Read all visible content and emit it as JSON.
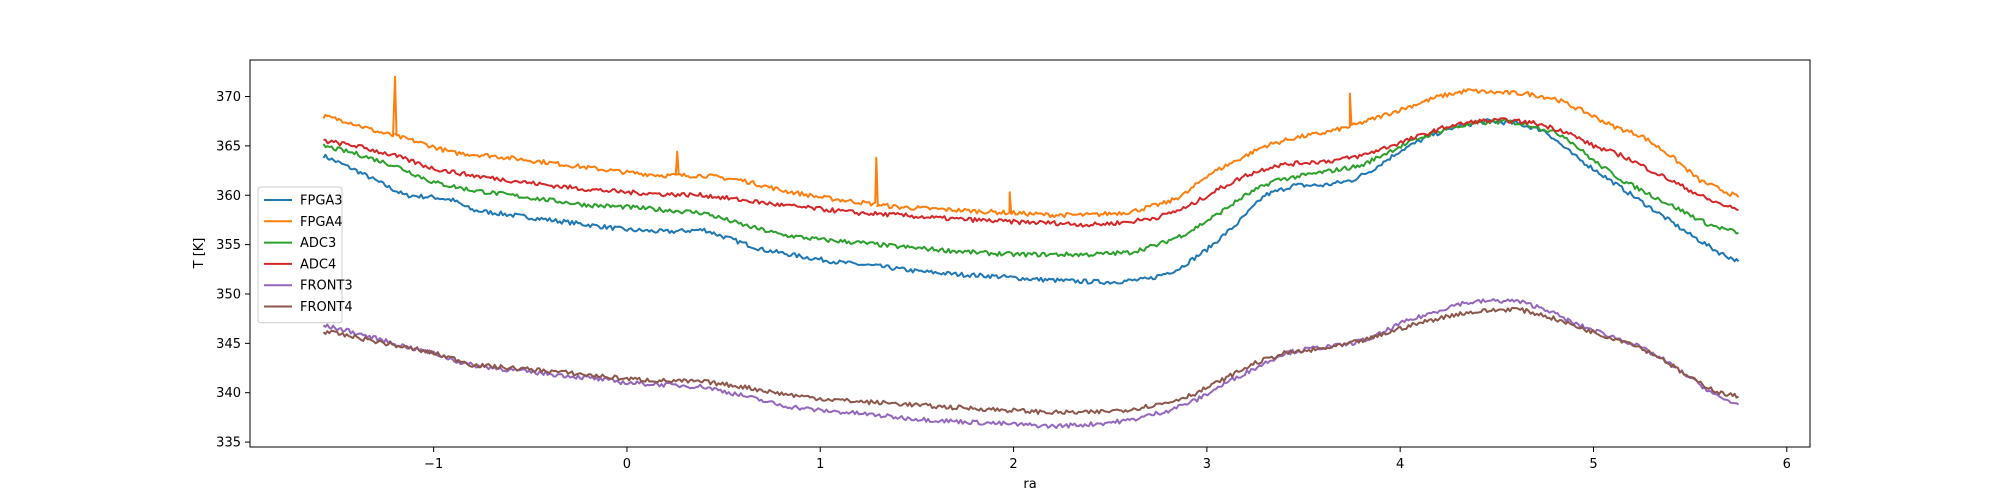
{
  "chart_data": {
    "type": "line",
    "title": "",
    "xlabel": "ra",
    "ylabel": "T [K]",
    "xlim": [
      -1.95,
      6.12
    ],
    "ylim": [
      334.5,
      373.7
    ],
    "xticks": [
      -1,
      0,
      1,
      2,
      3,
      4,
      5,
      6
    ],
    "yticks": [
      335,
      340,
      345,
      350,
      355,
      360,
      365,
      370
    ],
    "grid": false,
    "legend_position": "center-left",
    "series": [
      {
        "name": "FPGA3",
        "color": "#1f77b4",
        "x": [
          -1.57,
          -1.4,
          -1.25,
          -1.15,
          -1.0,
          -0.9,
          -0.8,
          -0.6,
          -0.4,
          -0.2,
          0.0,
          0.2,
          0.4,
          0.5,
          0.7,
          0.9,
          1.1,
          1.3,
          1.5,
          1.7,
          1.9,
          2.1,
          2.3,
          2.5,
          2.7,
          2.85,
          3.0,
          3.15,
          3.3,
          3.45,
          3.6,
          3.75,
          3.85,
          4.0,
          4.15,
          4.3,
          4.45,
          4.6,
          4.75,
          4.9,
          5.05,
          5.2,
          5.35,
          5.5,
          5.65,
          5.75
        ],
        "y": [
          364.0,
          362.5,
          361.0,
          360.0,
          359.8,
          359.5,
          358.5,
          358.0,
          357.5,
          357.0,
          356.5,
          356.3,
          356.5,
          355.8,
          354.5,
          353.8,
          353.2,
          352.8,
          352.3,
          352.0,
          351.8,
          351.5,
          351.3,
          351.2,
          351.5,
          352.5,
          354.5,
          357.0,
          360.0,
          361.0,
          361.0,
          361.5,
          362.5,
          364.5,
          366.0,
          367.0,
          367.5,
          367.3,
          366.5,
          364.0,
          362.0,
          360.0,
          358.0,
          356.0,
          354.2,
          353.3
        ]
      },
      {
        "name": "FPGA4",
        "color": "#ff7f0e",
        "x": [
          -1.57,
          -1.45,
          -1.3,
          -1.2,
          -1.1,
          -0.9,
          -0.7,
          -0.4,
          -0.2,
          0.0,
          0.2,
          0.4,
          0.6,
          0.8,
          1.0,
          1.2,
          1.4,
          1.6,
          1.8,
          2.0,
          2.2,
          2.4,
          2.6,
          2.8,
          2.9,
          3.0,
          3.15,
          3.3,
          3.45,
          3.6,
          3.75,
          3.9,
          4.05,
          4.2,
          4.35,
          4.5,
          4.65,
          4.8,
          4.95,
          5.1,
          5.25,
          5.4,
          5.55,
          5.75
        ],
        "y": [
          368.0,
          367.5,
          366.5,
          366.0,
          365.5,
          364.3,
          364.0,
          363.3,
          362.8,
          362.3,
          362.0,
          362.0,
          361.5,
          360.5,
          359.8,
          359.3,
          358.8,
          358.6,
          358.4,
          358.2,
          358.0,
          358.0,
          358.3,
          359.3,
          360.3,
          362.0,
          363.5,
          365.0,
          365.8,
          366.3,
          367.0,
          368.0,
          369.0,
          370.0,
          370.6,
          370.4,
          370.3,
          369.8,
          368.5,
          367.0,
          366.0,
          364.0,
          361.5,
          359.8
        ]
      },
      {
        "name": "ADC3",
        "color": "#2ca02c",
        "x": [
          -1.57,
          -1.4,
          -1.2,
          -1.0,
          -0.8,
          -0.6,
          -0.4,
          -0.2,
          0.0,
          0.2,
          0.4,
          0.6,
          0.8,
          1.0,
          1.2,
          1.4,
          1.6,
          1.8,
          2.0,
          2.2,
          2.4,
          2.6,
          2.75,
          2.9,
          3.05,
          3.2,
          3.35,
          3.5,
          3.65,
          3.8,
          3.95,
          4.1,
          4.25,
          4.4,
          4.55,
          4.7,
          4.85,
          5.0,
          5.15,
          5.3,
          5.45,
          5.6,
          5.75
        ],
        "y": [
          365.0,
          364.2,
          363.0,
          361.3,
          360.5,
          360.0,
          359.5,
          359.0,
          358.8,
          358.5,
          358.2,
          357.0,
          356.0,
          355.5,
          355.2,
          354.8,
          354.5,
          354.2,
          354.0,
          354.0,
          354.0,
          354.2,
          355.0,
          356.2,
          358.0,
          360.0,
          361.5,
          362.0,
          362.5,
          363.0,
          364.5,
          365.8,
          366.8,
          367.3,
          367.5,
          367.0,
          366.0,
          363.5,
          361.5,
          360.0,
          358.5,
          357.0,
          356.2
        ]
      },
      {
        "name": "ADC4",
        "color": "#d62728",
        "x": [
          -1.57,
          -1.4,
          -1.2,
          -1.0,
          -0.8,
          -0.6,
          -0.4,
          -0.2,
          0.0,
          0.2,
          0.4,
          0.6,
          0.8,
          1.0,
          1.2,
          1.4,
          1.6,
          1.8,
          2.0,
          2.2,
          2.4,
          2.6,
          2.75,
          2.9,
          3.05,
          3.2,
          3.35,
          3.5,
          3.65,
          3.8,
          3.95,
          4.1,
          4.25,
          4.4,
          4.55,
          4.7,
          4.85,
          5.0,
          5.15,
          5.3,
          5.45,
          5.6,
          5.75
        ],
        "y": [
          365.5,
          365.0,
          364.0,
          362.7,
          362.0,
          361.5,
          361.0,
          360.6,
          360.3,
          360.1,
          360.0,
          359.5,
          359.0,
          358.6,
          358.2,
          358.0,
          357.7,
          357.5,
          357.3,
          357.2,
          357.0,
          357.3,
          357.8,
          358.8,
          360.5,
          362.0,
          363.0,
          363.3,
          363.5,
          364.0,
          365.0,
          366.0,
          367.0,
          367.5,
          367.6,
          367.3,
          366.5,
          365.0,
          364.0,
          362.5,
          361.0,
          359.5,
          358.5
        ]
      },
      {
        "name": "FRONT3",
        "color": "#9467bd",
        "x": [
          -1.57,
          -1.45,
          -1.3,
          -1.15,
          -1.0,
          -0.85,
          -0.8,
          -0.6,
          -0.4,
          -0.2,
          0.0,
          0.2,
          0.4,
          0.6,
          0.8,
          1.0,
          1.2,
          1.4,
          1.6,
          1.8,
          2.0,
          2.2,
          2.4,
          2.6,
          2.8,
          2.95,
          3.1,
          3.25,
          3.4,
          3.55,
          3.7,
          3.85,
          4.0,
          4.15,
          4.3,
          4.45,
          4.6,
          4.75,
          4.9,
          5.05,
          5.2,
          5.35,
          5.5,
          5.65,
          5.75
        ],
        "y": [
          346.8,
          346.3,
          345.5,
          344.7,
          344.0,
          343.0,
          342.8,
          342.3,
          341.9,
          341.5,
          341.0,
          340.8,
          340.6,
          339.7,
          338.7,
          338.2,
          337.9,
          337.5,
          337.2,
          337.0,
          336.8,
          336.6,
          336.8,
          337.2,
          338.2,
          339.3,
          341.0,
          342.5,
          344.0,
          344.5,
          344.8,
          345.5,
          347.0,
          348.0,
          349.0,
          349.3,
          349.3,
          348.5,
          347.0,
          346.0,
          345.0,
          343.5,
          341.5,
          339.5,
          338.8
        ]
      },
      {
        "name": "FRONT4",
        "color": "#8c564b",
        "x": [
          -1.57,
          -1.45,
          -1.3,
          -1.15,
          -1.0,
          -0.85,
          -0.8,
          -0.6,
          -0.4,
          -0.2,
          0.0,
          0.2,
          0.4,
          0.6,
          0.8,
          1.0,
          1.2,
          1.4,
          1.6,
          1.8,
          2.0,
          2.2,
          2.4,
          2.6,
          2.8,
          2.95,
          3.1,
          3.25,
          3.4,
          3.55,
          3.7,
          3.85,
          4.0,
          4.15,
          4.3,
          4.45,
          4.6,
          4.75,
          4.9,
          5.05,
          5.2,
          5.35,
          5.5,
          5.65,
          5.75
        ],
        "y": [
          346.2,
          345.8,
          345.2,
          344.6,
          344.0,
          343.2,
          342.8,
          342.5,
          342.2,
          341.8,
          341.4,
          341.2,
          341.1,
          340.6,
          339.9,
          339.4,
          339.1,
          338.9,
          338.6,
          338.4,
          338.2,
          338.0,
          338.0,
          338.3,
          339.0,
          340.0,
          341.5,
          343.0,
          344.0,
          344.3,
          344.8,
          345.5,
          346.5,
          347.3,
          348.0,
          348.3,
          348.5,
          347.8,
          346.8,
          345.8,
          345.0,
          343.5,
          341.5,
          340.0,
          339.6
        ]
      }
    ],
    "spikes": [
      {
        "series": "FPGA4",
        "x": -1.2,
        "y": 372.0
      },
      {
        "series": "FPGA4",
        "x": 0.26,
        "y": 364.4
      },
      {
        "series": "FPGA4",
        "x": 1.29,
        "y": 363.8
      },
      {
        "series": "FPGA4",
        "x": 1.98,
        "y": 360.3
      },
      {
        "series": "FPGA4",
        "x": 3.74,
        "y": 370.3
      }
    ]
  }
}
